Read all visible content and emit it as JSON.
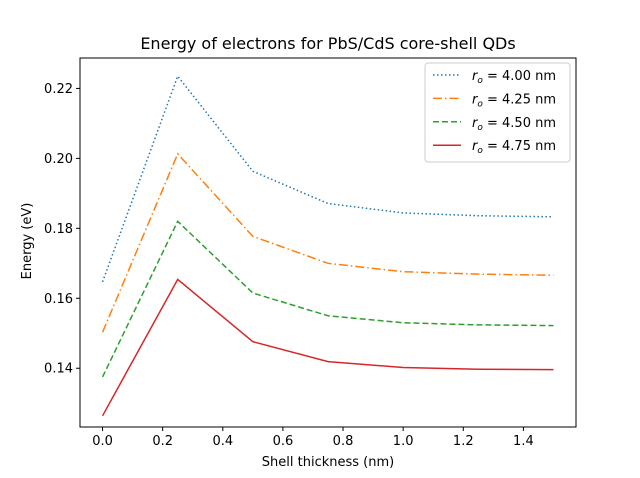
{
  "chart_data": {
    "type": "line",
    "title": "Energy of electrons for PbS/CdS core-shell QDs",
    "xlabel": "Shell thickness (nm)",
    "ylabel": "Energy (eV)",
    "xlim": [
      -0.075,
      1.575
    ],
    "ylim": [
      0.1232,
      0.2287
    ],
    "xticks": [
      0.0,
      0.2,
      0.4,
      0.6,
      0.8,
      1.0,
      1.2,
      1.4
    ],
    "xtick_labels": [
      "0.0",
      "0.2",
      "0.4",
      "0.6",
      "0.8",
      "1.0",
      "1.2",
      "1.4"
    ],
    "yticks": [
      0.14,
      0.16,
      0.18,
      0.2,
      0.22
    ],
    "ytick_labels": [
      "0.14",
      "0.16",
      "0.18",
      "0.20",
      "0.22"
    ],
    "grid": false,
    "legend_position": "top-right",
    "x": [
      0.0,
      0.25,
      0.5,
      0.75,
      1.0,
      1.25,
      1.5
    ],
    "series": [
      {
        "name": "r",
        "name_sub": "o",
        "name_rest": " = 4.00 nm",
        "color": "#1f77b4",
        "style": "dotted",
        "values": [
          0.1647,
          0.2235,
          0.1963,
          0.1871,
          0.1844,
          0.1836,
          0.1833
        ]
      },
      {
        "name": "r",
        "name_sub": "o",
        "name_rest": " = 4.25 nm",
        "color": "#ff7f0e",
        "style": "dashdot",
        "values": [
          0.1503,
          0.2013,
          0.1777,
          0.17,
          0.1676,
          0.1669,
          0.1666
        ]
      },
      {
        "name": "r",
        "name_sub": "o",
        "name_rest": " = 4.50 nm",
        "color": "#2ca02c",
        "style": "dashed",
        "values": [
          0.1375,
          0.182,
          0.1615,
          0.155,
          0.153,
          0.1524,
          0.1522
        ]
      },
      {
        "name": "r",
        "name_sub": "o",
        "name_rest": " = 4.75 nm",
        "color": "#d62728",
        "style": "solid",
        "values": [
          0.1264,
          0.1654,
          0.1476,
          0.1419,
          0.1402,
          0.1397,
          0.1396
        ]
      }
    ]
  }
}
